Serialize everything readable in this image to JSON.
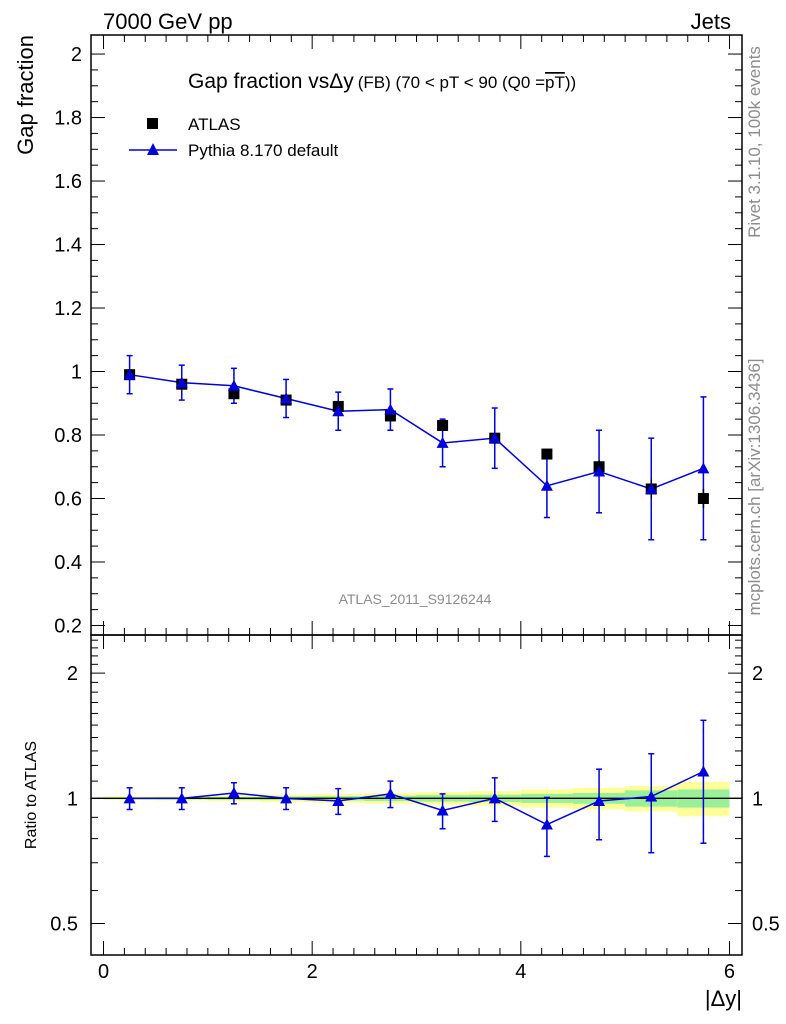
{
  "header": {
    "left": "7000 GeV pp",
    "right": "Jets"
  },
  "side_labels": {
    "rivet": "Rivet 3.1.10,  100k events",
    "mcplots": "mcplots.cern.ch [arXiv:1306.3436]"
  },
  "title": {
    "main": "Gap fraction vs",
    "delta": "Δy",
    "detail": "(FB) (70 < pT <  90 (Q0 =",
    "q0": "pT",
    "close": "))"
  },
  "watermark": "ATLAS_2011_S9126244",
  "colors": {
    "mc": "#0000dd",
    "data": "#000000",
    "band_inner": "#99f099",
    "band_outer": "#ffff99",
    "grey_text": "#8c8c8c"
  },
  "chart_data": [
    {
      "type": "scatter",
      "ylabel": "Gap fraction",
      "ylim": [
        0.17,
        2.06
      ],
      "xlim": [
        -0.12,
        6.12
      ],
      "yticks": [
        0.2,
        0.4,
        0.6,
        0.8,
        1.0,
        1.2,
        1.4,
        1.6,
        1.8,
        2.0
      ],
      "ytick_labels": [
        "0.2",
        "0.4",
        "0.6",
        "0.8",
        "1",
        "1.2",
        "1.4",
        "1.6",
        "1.8",
        "2"
      ],
      "legend": {
        "placement": "top-left",
        "entries": [
          "ATLAS",
          "Pythia 8.170 default"
        ]
      },
      "x": [
        0.25,
        0.75,
        1.25,
        1.75,
        2.25,
        2.75,
        3.25,
        3.75,
        4.25,
        4.75,
        5.25,
        5.75
      ],
      "series": [
        {
          "name": "ATLAS",
          "marker": "square",
          "values": [
            0.99,
            0.96,
            0.93,
            0.91,
            0.89,
            0.86,
            0.83,
            0.79,
            0.74,
            0.7,
            0.63,
            0.6
          ],
          "err": [
            0.01,
            0.01,
            0.01,
            0.01,
            0.01,
            0.01,
            0.01,
            0.01,
            0.01,
            0.02,
            0.03,
            0.03
          ]
        },
        {
          "name": "Pythia 8.170 default",
          "marker": "triangle",
          "values": [
            0.99,
            0.965,
            0.955,
            0.915,
            0.875,
            0.88,
            0.775,
            0.79,
            0.64,
            0.685,
            0.63,
            0.695
          ],
          "err": [
            0.06,
            0.055,
            0.055,
            0.06,
            0.06,
            0.065,
            0.075,
            0.095,
            0.1,
            0.13,
            0.16,
            0.225
          ]
        }
      ]
    },
    {
      "type": "scatter",
      "xlabel": "|Δy|",
      "ylabel": "Ratio to ATLAS",
      "ylim": [
        0.42,
        2.47
      ],
      "xlim": [
        -0.12,
        6.12
      ],
      "xticks": [
        0,
        2,
        4,
        6
      ],
      "xtick_labels": [
        "0",
        "2",
        "4",
        "6"
      ],
      "yticks": [
        0.5,
        1.0,
        2.0
      ],
      "ytick_labels": [
        "0.5",
        "1",
        "2"
      ],
      "x": [
        0.25,
        0.75,
        1.25,
        1.75,
        2.25,
        2.75,
        3.25,
        3.75,
        4.25,
        4.75,
        5.25,
        5.75
      ],
      "band": {
        "x_edges": [
          0,
          0.5,
          1.0,
          1.5,
          2.0,
          2.5,
          3.0,
          3.5,
          4.0,
          4.5,
          5.0,
          5.5,
          6.0
        ],
        "inner": [
          0.005,
          0.006,
          0.008,
          0.01,
          0.012,
          0.015,
          0.018,
          0.02,
          0.025,
          0.03,
          0.045,
          0.05
        ],
        "outer": [
          0.01,
          0.012,
          0.015,
          0.02,
          0.025,
          0.03,
          0.035,
          0.04,
          0.05,
          0.06,
          0.07,
          0.095
        ]
      },
      "series": [
        {
          "name": "Pythia 8.170 default",
          "marker": "triangle",
          "values": [
            1.0,
            1.0,
            1.03,
            1.0,
            0.985,
            1.025,
            0.935,
            1.0,
            0.865,
            0.985,
            1.01,
            1.16
          ],
          "err": [
            0.06,
            0.06,
            0.06,
            0.06,
            0.07,
            0.075,
            0.09,
            0.12,
            0.14,
            0.19,
            0.27,
            0.38
          ]
        }
      ]
    }
  ]
}
